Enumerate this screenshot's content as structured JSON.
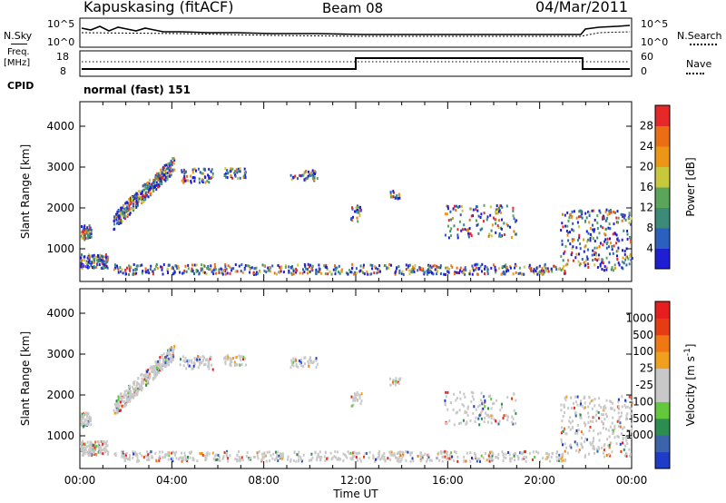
{
  "header": {
    "station": "Kapuskasing (fitACF)",
    "beam": "Beam 08",
    "date": "04/Mar/2011"
  },
  "top_panels": {
    "nsky_label": "N.Sky",
    "nsky_ticks": [
      "10^5",
      "10^0"
    ],
    "nsearch_label": "N.Search",
    "nsearch_ticks": [
      "10^5",
      "10^0"
    ],
    "freq_label": "Freq.",
    "freq_unit": "[MHz]",
    "freq_ticks": [
      "18",
      "8"
    ],
    "nave_label": "Nave",
    "nave_ticks": [
      "60",
      "0"
    ],
    "cpid_label": "CPID",
    "cpid_value": "normal (fast) 151"
  },
  "chart_data": [
    {
      "type": "heatmap",
      "name": "power",
      "ylabel": "Slant Range [km]",
      "ylim": [
        200,
        4600
      ],
      "yticks": [
        "1000",
        "2000",
        "3000",
        "4000"
      ],
      "colorbar_label": "Power [dB]",
      "colorbar_ticks": [
        "4",
        "8",
        "12",
        "16",
        "20",
        "24",
        "28"
      ],
      "colorbar_colors": [
        "#1e1ed2",
        "#2d5fbe",
        "#3c8a78",
        "#5aa55a",
        "#c8c83c",
        "#eb9614",
        "#eb6e14",
        "#e62828"
      ]
    },
    {
      "type": "heatmap",
      "name": "velocity",
      "ylabel": "Slant Range [km]",
      "ylim": [
        200,
        4600
      ],
      "yticks": [
        "1000",
        "2000",
        "3000",
        "4000"
      ],
      "xlabel": "Time UT",
      "xticks": [
        "00:00",
        "04:00",
        "08:00",
        "12:00",
        "16:00",
        "20:00",
        "00:00"
      ],
      "colorbar_label": "Velocity [m s",
      "colorbar_label_sup": "-1",
      "colorbar_label_end": "]",
      "colorbar_ticks": [
        "1000",
        "500",
        "100",
        "25",
        "-25",
        "-100",
        "-500",
        "-1000"
      ],
      "colorbar_colors": [
        "#1e3cc8",
        "#3c64aa",
        "#2d8c50",
        "#64c83c",
        "#c8c8c8",
        "#c8c8c8",
        "#f0a01e",
        "#f07814",
        "#e63c14",
        "#e61e1e"
      ]
    }
  ]
}
